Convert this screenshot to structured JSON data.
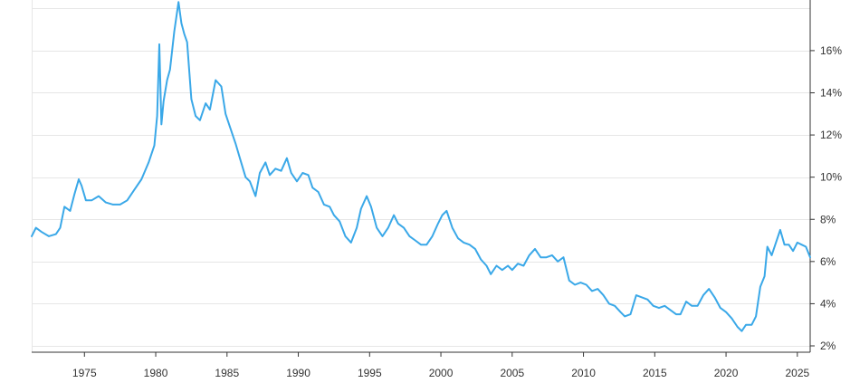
{
  "chart_data": {
    "type": "line",
    "title": "",
    "xlabel": "",
    "ylabel": "",
    "xlim": [
      1971.3,
      2025.9
    ],
    "ylim": [
      1.7,
      18.4
    ],
    "x_ticks": [
      1975,
      1980,
      1985,
      1990,
      1995,
      2000,
      2005,
      2010,
      2015,
      2020,
      2025
    ],
    "x_tick_labels": [
      "1975",
      "1980",
      "1985",
      "1990",
      "1995",
      "2000",
      "2005",
      "2010",
      "2015",
      "2020",
      "2025"
    ],
    "y_ticks": [
      2,
      4,
      6,
      8,
      10,
      12,
      14,
      16
    ],
    "y_tick_labels": [
      "2%",
      "4%",
      "6%",
      "8%",
      "10%",
      "12%",
      "14%",
      "16%"
    ],
    "y_axis_position": "right",
    "grid": true,
    "line_color": "#3aa8e8",
    "series": [
      {
        "x": [
          1971.3,
          1971.6,
          1972.0,
          1972.5,
          1973.0,
          1973.3,
          1973.6,
          1974.0,
          1974.3,
          1974.6,
          1974.8,
          1975.1,
          1975.5,
          1976.0,
          1976.5,
          1977.0,
          1977.5,
          1978.0,
          1978.5,
          1979.0,
          1979.5,
          1979.9,
          1980.1,
          1980.25,
          1980.4,
          1980.55,
          1980.8,
          1981.0,
          1981.3,
          1981.6,
          1981.8,
          1982.0,
          1982.2,
          1982.5,
          1982.8,
          1983.1,
          1983.5,
          1983.8,
          1984.2,
          1984.6,
          1984.9,
          1985.2,
          1985.6,
          1985.9,
          1986.3,
          1986.6,
          1987.0,
          1987.3,
          1987.7,
          1988.0,
          1988.4,
          1988.8,
          1989.2,
          1989.5,
          1989.9,
          1990.3,
          1990.7,
          1991.0,
          1991.4,
          1991.8,
          1992.2,
          1992.5,
          1992.9,
          1993.3,
          1993.7,
          1994.1,
          1994.4,
          1994.8,
          1995.1,
          1995.5,
          1995.9,
          1996.3,
          1996.7,
          1997.0,
          1997.4,
          1997.8,
          1998.2,
          1998.6,
          1999.0,
          1999.4,
          1999.8,
          2000.1,
          2000.4,
          2000.8,
          2001.2,
          2001.6,
          2002.0,
          2002.4,
          2002.8,
          2003.2,
          2003.5,
          2003.9,
          2004.3,
          2004.7,
          2005.0,
          2005.4,
          2005.8,
          2006.2,
          2006.6,
          2007.0,
          2007.4,
          2007.8,
          2008.2,
          2008.6,
          2009.0,
          2009.4,
          2009.8,
          2010.2,
          2010.6,
          2011.0,
          2011.4,
          2011.8,
          2012.2,
          2012.6,
          2012.9,
          2013.3,
          2013.7,
          2014.1,
          2014.5,
          2014.9,
          2015.3,
          2015.7,
          2016.1,
          2016.5,
          2016.8,
          2017.2,
          2017.6,
          2018.0,
          2018.4,
          2018.8,
          2019.2,
          2019.6,
          2020.0,
          2020.4,
          2020.8,
          2021.1,
          2021.4,
          2021.8,
          2022.1,
          2022.4,
          2022.7,
          2022.9,
          2023.2,
          2023.5,
          2023.8,
          2024.1,
          2024.4,
          2024.7,
          2025.0,
          2025.3,
          2025.6,
          2025.9
        ],
        "y": [
          7.2,
          7.6,
          7.4,
          7.2,
          7.3,
          7.6,
          8.6,
          8.4,
          9.2,
          9.9,
          9.6,
          8.9,
          8.9,
          9.1,
          8.8,
          8.7,
          8.7,
          8.9,
          9.4,
          9.9,
          10.7,
          11.5,
          12.9,
          16.3,
          12.5,
          13.6,
          14.6,
          15.1,
          16.9,
          18.3,
          17.3,
          16.8,
          16.4,
          13.7,
          12.9,
          12.7,
          13.5,
          13.2,
          14.6,
          14.3,
          13.0,
          12.4,
          11.6,
          10.9,
          10.0,
          9.8,
          9.1,
          10.2,
          10.7,
          10.1,
          10.4,
          10.3,
          10.9,
          10.2,
          9.8,
          10.2,
          10.1,
          9.5,
          9.3,
          8.7,
          8.6,
          8.2,
          7.9,
          7.2,
          6.9,
          7.6,
          8.5,
          9.1,
          8.6,
          7.6,
          7.2,
          7.6,
          8.2,
          7.8,
          7.6,
          7.2,
          7.0,
          6.8,
          6.8,
          7.2,
          7.8,
          8.2,
          8.4,
          7.6,
          7.1,
          6.9,
          6.8,
          6.6,
          6.1,
          5.8,
          5.4,
          5.8,
          5.6,
          5.8,
          5.6,
          5.9,
          5.8,
          6.3,
          6.6,
          6.2,
          6.2,
          6.3,
          6.0,
          6.2,
          5.1,
          4.9,
          5.0,
          4.9,
          4.6,
          4.7,
          4.4,
          4.0,
          3.9,
          3.6,
          3.4,
          3.5,
          4.4,
          4.3,
          4.2,
          3.9,
          3.8,
          3.9,
          3.7,
          3.5,
          3.5,
          4.1,
          3.9,
          3.9,
          4.4,
          4.7,
          4.3,
          3.8,
          3.6,
          3.3,
          2.9,
          2.7,
          3.0,
          3.0,
          3.4,
          4.8,
          5.3,
          6.7,
          6.3,
          6.9,
          7.5,
          6.8,
          6.8,
          6.5,
          6.9,
          6.8,
          6.7,
          6.2
        ]
      }
    ]
  }
}
